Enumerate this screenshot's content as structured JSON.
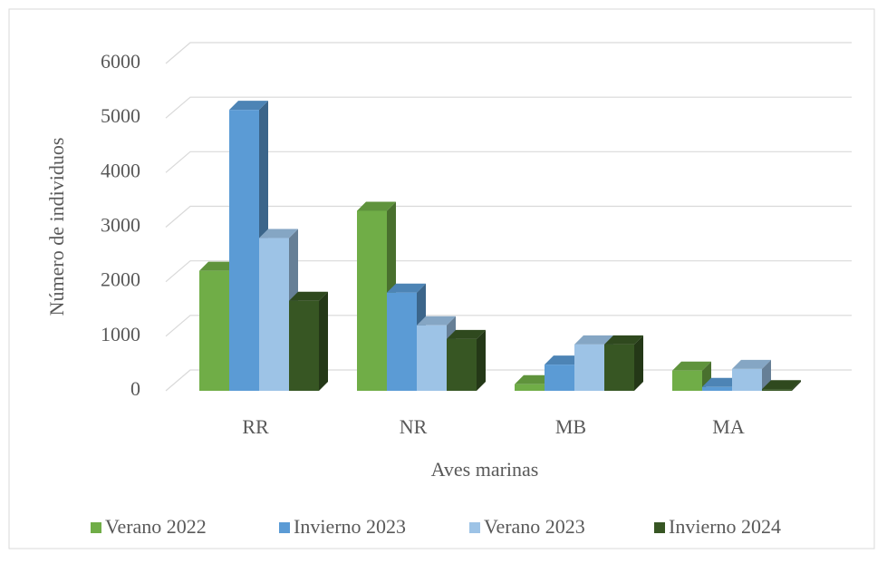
{
  "chart_data": {
    "type": "bar3d",
    "x_label": "Aves marinas",
    "y_label": "Número de individuos",
    "categories": [
      "RR",
      "NR",
      "MB",
      "MA"
    ],
    "series": [
      {
        "name": "Verano 2022",
        "color": "#70ad47",
        "values": [
          2200,
          3300,
          120,
          370
        ]
      },
      {
        "name": "Invierno 2023",
        "color": "#5b9bd5",
        "values": [
          5150,
          1800,
          480,
          70
        ]
      },
      {
        "name": "Verano 2023",
        "color": "#9dc3e6",
        "values": [
          2800,
          1200,
          850,
          400
        ]
      },
      {
        "name": "Invierno 2024",
        "color": "#375623",
        "values": [
          1650,
          950,
          850,
          30
        ]
      }
    ],
    "ylim": [
      0,
      6000
    ],
    "yticks": [
      0,
      1000,
      2000,
      3000,
      4000,
      5000,
      6000
    ],
    "grid": true,
    "legend": "bottom"
  }
}
